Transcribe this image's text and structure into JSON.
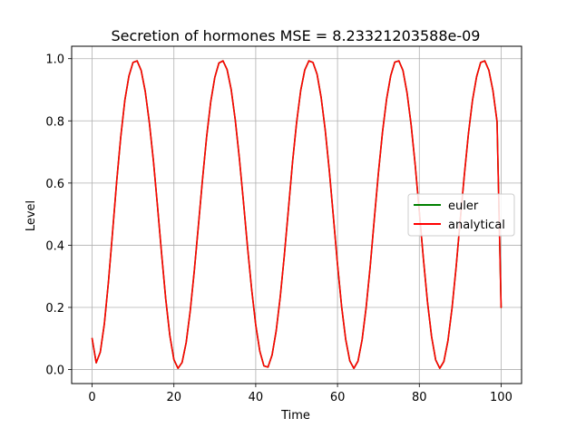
{
  "chart_data": {
    "type": "line",
    "title": "Secretion of hormones MSE = 8.23321203588e-09",
    "xlabel": "Time",
    "ylabel": "Level",
    "xlim": [
      -5,
      105
    ],
    "ylim": [
      -0.045,
      1.04
    ],
    "xticks": [
      0,
      20,
      40,
      60,
      80,
      100
    ],
    "yticks": [
      0.0,
      0.2,
      0.4,
      0.6,
      0.8,
      1.0
    ],
    "xtick_labels": [
      "0",
      "20",
      "40",
      "60",
      "80",
      "100"
    ],
    "ytick_labels": [
      "0.0",
      "0.2",
      "0.4",
      "0.6",
      "0.8",
      "1.0"
    ],
    "grid": true,
    "legend_position": "right",
    "series": [
      {
        "name": "euler",
        "color": "#008000",
        "x": [
          0,
          1,
          2,
          3,
          4,
          5,
          6,
          7,
          8,
          9,
          10,
          11,
          12,
          13,
          14,
          15,
          16,
          17,
          18,
          19,
          20,
          21,
          22,
          23,
          24,
          25,
          26,
          27,
          28,
          29,
          30,
          31,
          32,
          33,
          34,
          35,
          36,
          37,
          38,
          39,
          40,
          41,
          42,
          43,
          44,
          45,
          46,
          47,
          48,
          49,
          50,
          51,
          52,
          53,
          54,
          55,
          56,
          57,
          58,
          59,
          60,
          61,
          62,
          63,
          64,
          65,
          66,
          67,
          68,
          69,
          70,
          71,
          72,
          73,
          74,
          75,
          76,
          77,
          78,
          79,
          80,
          81,
          82,
          83,
          84,
          85,
          86,
          87,
          88,
          89,
          90,
          91,
          92,
          93,
          94,
          95,
          96,
          97,
          98,
          99,
          100
        ],
        "y": [
          0.1,
          0.022,
          0.056,
          0.148,
          0.283,
          0.442,
          0.604,
          0.748,
          0.866,
          0.944,
          0.988,
          0.993,
          0.962,
          0.894,
          0.794,
          0.67,
          0.524,
          0.371,
          0.227,
          0.11,
          0.032,
          0.004,
          0.023,
          0.087,
          0.19,
          0.32,
          0.465,
          0.613,
          0.749,
          0.861,
          0.94,
          0.986,
          0.993,
          0.965,
          0.901,
          0.803,
          0.68,
          0.54,
          0.394,
          0.259,
          0.144,
          0.059,
          0.012,
          0.008,
          0.047,
          0.124,
          0.234,
          0.368,
          0.516,
          0.667,
          0.795,
          0.898,
          0.964,
          0.993,
          0.988,
          0.95,
          0.875,
          0.77,
          0.639,
          0.49,
          0.338,
          0.203,
          0.097,
          0.028,
          0.004,
          0.027,
          0.095,
          0.2,
          0.333,
          0.485,
          0.633,
          0.764,
          0.87,
          0.945,
          0.989,
          0.993,
          0.962,
          0.89,
          0.787,
          0.657,
          0.508,
          0.356,
          0.217,
          0.106,
          0.031,
          0.004,
          0.026,
          0.093,
          0.198,
          0.33,
          0.48,
          0.625,
          0.758,
          0.866,
          0.942,
          0.988,
          0.993,
          0.963,
          0.897,
          0.798,
          0.2
        ]
      },
      {
        "name": "analytical",
        "color": "#ff0000",
        "x": [
          0,
          1,
          2,
          3,
          4,
          5,
          6,
          7,
          8,
          9,
          10,
          11,
          12,
          13,
          14,
          15,
          16,
          17,
          18,
          19,
          20,
          21,
          22,
          23,
          24,
          25,
          26,
          27,
          28,
          29,
          30,
          31,
          32,
          33,
          34,
          35,
          36,
          37,
          38,
          39,
          40,
          41,
          42,
          43,
          44,
          45,
          46,
          47,
          48,
          49,
          50,
          51,
          52,
          53,
          54,
          55,
          56,
          57,
          58,
          59,
          60,
          61,
          62,
          63,
          64,
          65,
          66,
          67,
          68,
          69,
          70,
          71,
          72,
          73,
          74,
          75,
          76,
          77,
          78,
          79,
          80,
          81,
          82,
          83,
          84,
          85,
          86,
          87,
          88,
          89,
          90,
          91,
          92,
          93,
          94,
          95,
          96,
          97,
          98,
          99,
          100
        ],
        "y": [
          0.1,
          0.022,
          0.056,
          0.148,
          0.283,
          0.442,
          0.604,
          0.748,
          0.866,
          0.944,
          0.988,
          0.993,
          0.962,
          0.894,
          0.794,
          0.67,
          0.524,
          0.371,
          0.227,
          0.11,
          0.032,
          0.004,
          0.023,
          0.087,
          0.19,
          0.32,
          0.465,
          0.613,
          0.749,
          0.861,
          0.94,
          0.986,
          0.993,
          0.965,
          0.901,
          0.803,
          0.68,
          0.54,
          0.394,
          0.259,
          0.144,
          0.059,
          0.012,
          0.008,
          0.047,
          0.124,
          0.234,
          0.368,
          0.516,
          0.667,
          0.795,
          0.898,
          0.964,
          0.993,
          0.988,
          0.95,
          0.875,
          0.77,
          0.639,
          0.49,
          0.338,
          0.203,
          0.097,
          0.028,
          0.004,
          0.027,
          0.095,
          0.2,
          0.333,
          0.485,
          0.633,
          0.764,
          0.87,
          0.945,
          0.989,
          0.993,
          0.962,
          0.89,
          0.787,
          0.657,
          0.508,
          0.356,
          0.217,
          0.106,
          0.031,
          0.004,
          0.026,
          0.093,
          0.198,
          0.33,
          0.48,
          0.625,
          0.758,
          0.866,
          0.942,
          0.988,
          0.993,
          0.963,
          0.897,
          0.798,
          0.2
        ]
      }
    ]
  }
}
